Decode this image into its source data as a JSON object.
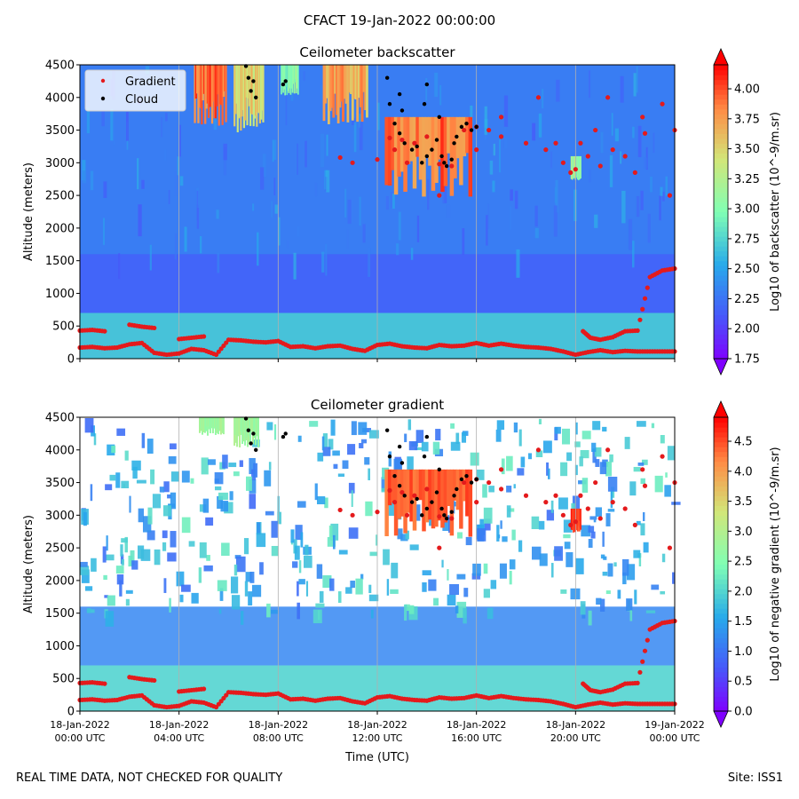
{
  "figure_title": "CFACT 19-Jan-2022 00:00:00",
  "footer": {
    "left": "REAL TIME DATA, NOT CHECKED FOR QUALITY",
    "right": "Site: ISS1"
  },
  "chart_data": [
    {
      "type": "heatmap",
      "title": "Ceilometer backscatter",
      "ylabel": "Altitude (meters)",
      "xlabel": "",
      "xlim_hours": [
        0,
        24
      ],
      "ylim": [
        0,
        4500
      ],
      "yticks": [
        0,
        500,
        1000,
        1500,
        2000,
        2500,
        3000,
        3500,
        4000,
        4500
      ],
      "x_tick_hours": [
        0,
        4,
        8,
        12,
        16,
        20,
        24
      ],
      "x_tick_labels": [],
      "colorbar": {
        "label": "Log10 of backscatter (10^-9/m.sr)",
        "range": [
          1.75,
          4.2
        ],
        "ticks": [
          1.75,
          2.0,
          2.25,
          2.5,
          2.75,
          3.0,
          3.25,
          3.5,
          3.75,
          4.0
        ],
        "tick_labels": [
          "1.75",
          "2.00",
          "2.25",
          "2.50",
          "2.75",
          "3.00",
          "3.25",
          "3.50",
          "3.75",
          "4.00"
        ]
      },
      "legend": {
        "position": "top-left",
        "entries": [
          {
            "label": "Gradient",
            "color": "#e41a1c",
            "marker": "dot"
          },
          {
            "label": "Cloud",
            "color": "#000000",
            "marker": "dot"
          }
        ]
      },
      "field": {
        "surface_value": 2.7,
        "background_value": 2.3,
        "boundary_layer_value": 2.15,
        "high_signal_regions": [
          {
            "t_start": 4.6,
            "t_end": 5.9,
            "alt_min": 3500,
            "alt_max": 4500,
            "value": 4.1
          },
          {
            "t_start": 6.2,
            "t_end": 7.4,
            "alt_min": 3400,
            "alt_max": 4500,
            "value": 3.7
          },
          {
            "t_start": 8.1,
            "t_end": 8.8,
            "alt_min": 4000,
            "alt_max": 4500,
            "value": 3.2
          },
          {
            "t_start": 9.8,
            "t_end": 11.6,
            "alt_min": 3500,
            "alt_max": 4500,
            "value": 3.9
          },
          {
            "t_start": 12.3,
            "t_end": 15.8,
            "alt_min": 2400,
            "alt_max": 3700,
            "value": 4.1
          },
          {
            "t_start": 19.8,
            "t_end": 20.2,
            "alt_min": 2700,
            "alt_max": 3100,
            "value": 3.3
          }
        ]
      },
      "gradient_series_low": [
        [
          0.0,
          170
        ],
        [
          0.5,
          180
        ],
        [
          1.0,
          160
        ],
        [
          1.5,
          170
        ],
        [
          2.0,
          220
        ],
        [
          2.5,
          240
        ],
        [
          3.0,
          90
        ],
        [
          3.5,
          60
        ],
        [
          4.0,
          80
        ],
        [
          4.5,
          150
        ],
        [
          5.0,
          130
        ],
        [
          5.5,
          60
        ],
        [
          6.0,
          290
        ],
        [
          6.5,
          280
        ],
        [
          7.0,
          260
        ],
        [
          7.5,
          250
        ],
        [
          8.0,
          270
        ],
        [
          8.5,
          180
        ],
        [
          9.0,
          190
        ],
        [
          9.5,
          160
        ],
        [
          10.0,
          190
        ],
        [
          10.5,
          200
        ],
        [
          11.0,
          150
        ],
        [
          11.5,
          120
        ],
        [
          12.0,
          210
        ],
        [
          12.5,
          230
        ],
        [
          13.0,
          190
        ],
        [
          13.5,
          170
        ],
        [
          14.0,
          160
        ],
        [
          14.5,
          210
        ],
        [
          15.0,
          190
        ],
        [
          15.5,
          200
        ],
        [
          16.0,
          240
        ],
        [
          16.5,
          200
        ],
        [
          17.0,
          230
        ],
        [
          17.5,
          200
        ],
        [
          18.0,
          180
        ],
        [
          18.5,
          170
        ],
        [
          19.0,
          150
        ],
        [
          19.5,
          110
        ],
        [
          20.0,
          60
        ],
        [
          20.5,
          100
        ],
        [
          21.0,
          130
        ],
        [
          21.5,
          100
        ],
        [
          22.0,
          120
        ],
        [
          22.5,
          110
        ],
        [
          23.0,
          110
        ],
        [
          23.5,
          110
        ],
        [
          24.0,
          110
        ]
      ],
      "gradient_series_upper": [
        [
          0.0,
          430
        ],
        [
          0.5,
          440
        ],
        [
          1.0,
          420
        ],
        [
          2.0,
          520
        ],
        [
          2.5,
          490
        ],
        [
          3.0,
          470
        ],
        [
          4.0,
          300
        ],
        [
          4.5,
          320
        ],
        [
          5.0,
          340
        ],
        [
          20.3,
          420
        ],
        [
          20.6,
          320
        ],
        [
          21.0,
          290
        ],
        [
          21.5,
          330
        ],
        [
          22.0,
          420
        ],
        [
          22.5,
          430
        ],
        [
          23.0,
          1250
        ],
        [
          23.5,
          1350
        ],
        [
          24.0,
          1380
        ]
      ],
      "gradient_series_cloud": [
        [
          10.5,
          3080
        ],
        [
          11.0,
          3000
        ],
        [
          12.0,
          3050
        ],
        [
          12.5,
          3380
        ],
        [
          13.0,
          3350
        ],
        [
          13.5,
          3300
        ],
        [
          14.0,
          3400
        ],
        [
          14.5,
          2980
        ],
        [
          15.0,
          2950
        ],
        [
          15.5,
          3500
        ],
        [
          16.0,
          3550
        ],
        [
          16.5,
          3500
        ],
        [
          17.0,
          3400
        ],
        [
          18.0,
          3300
        ],
        [
          18.8,
          3200
        ],
        [
          19.2,
          3300
        ],
        [
          19.8,
          2850
        ],
        [
          20.2,
          3300
        ],
        [
          20.8,
          3500
        ],
        [
          21.5,
          3200
        ],
        [
          22.0,
          3100
        ],
        [
          22.8,
          3450
        ],
        [
          23.5,
          3900
        ],
        [
          24.0,
          3500
        ],
        [
          21.0,
          2950
        ],
        [
          22.4,
          2850
        ],
        [
          18.5,
          4000
        ],
        [
          17.0,
          3700
        ],
        [
          19.5,
          3000
        ],
        [
          23.8,
          2500
        ],
        [
          14.5,
          2500
        ],
        [
          20.5,
          3100
        ],
        [
          16.0,
          3200
        ],
        [
          20.0,
          2900
        ],
        [
          13.2,
          3000
        ],
        [
          12.7,
          3200
        ],
        [
          21.3,
          4000
        ],
        [
          22.7,
          3700
        ]
      ],
      "cloud_points": [
        [
          6.7,
          4480
        ],
        [
          6.8,
          4300
        ],
        [
          6.9,
          4100
        ],
        [
          7.0,
          4250
        ],
        [
          7.1,
          4000
        ],
        [
          8.2,
          4200
        ],
        [
          8.3,
          4250
        ],
        [
          12.4,
          4300
        ],
        [
          12.5,
          3900
        ],
        [
          12.7,
          3600
        ],
        [
          12.9,
          3450
        ],
        [
          13.1,
          3300
        ],
        [
          13.4,
          3200
        ],
        [
          13.6,
          3250
        ],
        [
          13.8,
          3000
        ],
        [
          14.0,
          3100
        ],
        [
          14.2,
          3200
        ],
        [
          14.4,
          3350
        ],
        [
          14.6,
          3100
        ],
        [
          14.8,
          2950
        ],
        [
          15.0,
          3050
        ],
        [
          15.2,
          3400
        ],
        [
          15.4,
          3550
        ],
        [
          15.6,
          3600
        ],
        [
          15.8,
          3500
        ],
        [
          16.0,
          3550
        ],
        [
          14.0,
          4200
        ],
        [
          13.0,
          3800
        ],
        [
          14.5,
          3700
        ],
        [
          12.9,
          4050
        ],
        [
          13.9,
          3900
        ],
        [
          14.7,
          3000
        ],
        [
          15.1,
          3300
        ]
      ]
    },
    {
      "type": "heatmap",
      "title": "Ceilometer gradient",
      "ylabel": "Altitude (meters)",
      "xlabel": "Time (UTC)",
      "xlim_hours": [
        0,
        24
      ],
      "ylim": [
        0,
        4500
      ],
      "yticks": [
        0,
        500,
        1000,
        1500,
        2000,
        2500,
        3000,
        3500,
        4000,
        4500
      ],
      "x_tick_hours": [
        0,
        4,
        8,
        12,
        16,
        20,
        24
      ],
      "x_tick_labels": [
        [
          "18-Jan-2022",
          "00:00 UTC"
        ],
        [
          "18-Jan-2022",
          "04:00 UTC"
        ],
        [
          "18-Jan-2022",
          "08:00 UTC"
        ],
        [
          "18-Jan-2022",
          "12:00 UTC"
        ],
        [
          "18-Jan-2022",
          "16:00 UTC"
        ],
        [
          "18-Jan-2022",
          "20:00 UTC"
        ],
        [
          "19-Jan-2022",
          "00:00 UTC"
        ]
      ],
      "colorbar": {
        "label": "Log10 of negative gradient (10^-9/m.sr)",
        "range": [
          0.0,
          4.9
        ],
        "ticks": [
          0.0,
          0.5,
          1.0,
          1.5,
          2.0,
          2.5,
          3.0,
          3.5,
          4.0,
          4.5
        ],
        "tick_labels": [
          "0.0",
          "0.5",
          "1.0",
          "1.5",
          "2.0",
          "2.5",
          "3.0",
          "3.5",
          "4.0",
          "4.5"
        ]
      },
      "field": {
        "surface_value": 2.0,
        "background_value": null,
        "boundary_layer_value": 1.2,
        "high_signal_regions": [
          {
            "t_start": 4.8,
            "t_end": 5.8,
            "alt_min": 4200,
            "alt_max": 4500,
            "value": 3.0
          },
          {
            "t_start": 6.2,
            "t_end": 7.2,
            "alt_min": 4000,
            "alt_max": 4500,
            "value": 3.0
          },
          {
            "t_start": 12.3,
            "t_end": 15.8,
            "alt_min": 2600,
            "alt_max": 3700,
            "value": 4.6
          },
          {
            "t_start": 19.8,
            "t_end": 20.2,
            "alt_min": 2700,
            "alt_max": 3100,
            "value": 4.8
          }
        ]
      }
    }
  ]
}
